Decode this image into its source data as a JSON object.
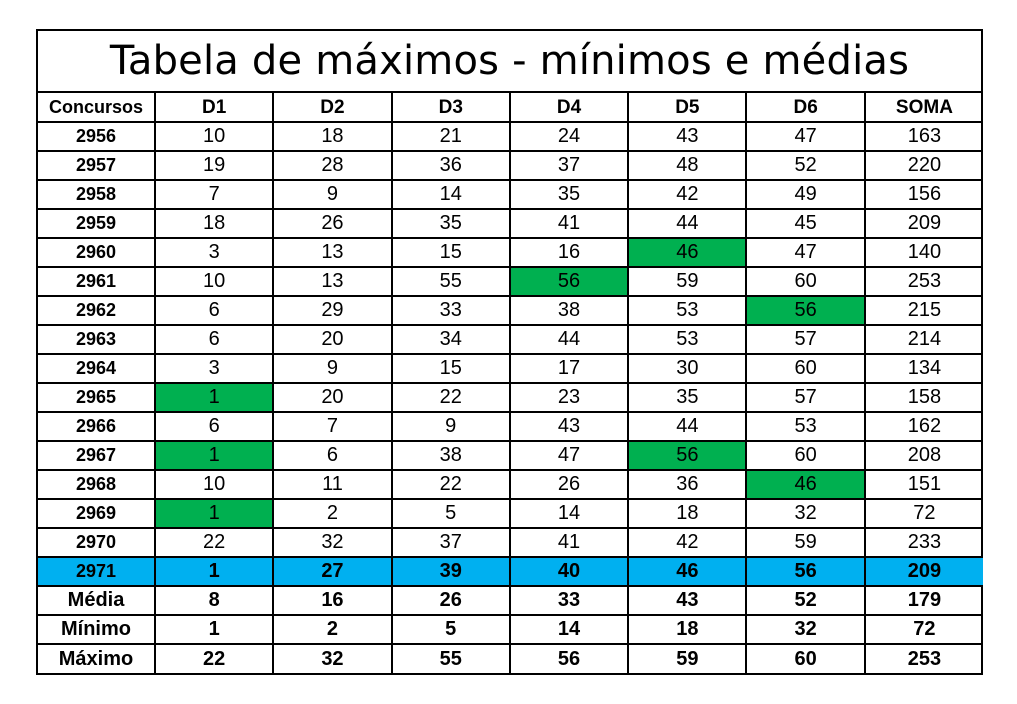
{
  "title": "Tabela de máximos - mínimos e médias",
  "headers": [
    "Concursos",
    "D1",
    "D2",
    "D3",
    "D4",
    "D5",
    "D6",
    "SOMA"
  ],
  "highlight_color": "#00b050",
  "current_row_color": "#00b0f0",
  "rows": [
    {
      "label": "2956",
      "values": [
        "10",
        "18",
        "21",
        "24",
        "43",
        "47",
        "163"
      ],
      "highlight": []
    },
    {
      "label": "2957",
      "values": [
        "19",
        "28",
        "36",
        "37",
        "48",
        "52",
        "220"
      ],
      "highlight": []
    },
    {
      "label": "2958",
      "values": [
        "7",
        "9",
        "14",
        "35",
        "42",
        "49",
        "156"
      ],
      "highlight": []
    },
    {
      "label": "2959",
      "values": [
        "18",
        "26",
        "35",
        "41",
        "44",
        "45",
        "209"
      ],
      "highlight": []
    },
    {
      "label": "2960",
      "values": [
        "3",
        "13",
        "15",
        "16",
        "46",
        "47",
        "140"
      ],
      "highlight": [
        4
      ]
    },
    {
      "label": "2961",
      "values": [
        "10",
        "13",
        "55",
        "56",
        "59",
        "60",
        "253"
      ],
      "highlight": [
        3
      ]
    },
    {
      "label": "2962",
      "values": [
        "6",
        "29",
        "33",
        "38",
        "53",
        "56",
        "215"
      ],
      "highlight": [
        5
      ]
    },
    {
      "label": "2963",
      "values": [
        "6",
        "20",
        "34",
        "44",
        "53",
        "57",
        "214"
      ],
      "highlight": []
    },
    {
      "label": "2964",
      "values": [
        "3",
        "9",
        "15",
        "17",
        "30",
        "60",
        "134"
      ],
      "highlight": []
    },
    {
      "label": "2965",
      "values": [
        "1",
        "20",
        "22",
        "23",
        "35",
        "57",
        "158"
      ],
      "highlight": [
        0
      ]
    },
    {
      "label": "2966",
      "values": [
        "6",
        "7",
        "9",
        "43",
        "44",
        "53",
        "162"
      ],
      "highlight": []
    },
    {
      "label": "2967",
      "values": [
        "1",
        "6",
        "38",
        "47",
        "56",
        "60",
        "208"
      ],
      "highlight": [
        0,
        4
      ]
    },
    {
      "label": "2968",
      "values": [
        "10",
        "11",
        "22",
        "26",
        "36",
        "46",
        "151"
      ],
      "highlight": [
        5
      ]
    },
    {
      "label": "2969",
      "values": [
        "1",
        "2",
        "5",
        "14",
        "18",
        "32",
        "72"
      ],
      "highlight": [
        0
      ]
    },
    {
      "label": "2970",
      "values": [
        "22",
        "32",
        "37",
        "41",
        "42",
        "59",
        "233"
      ],
      "highlight": []
    }
  ],
  "current": {
    "label": "2971",
    "values": [
      "1",
      "27",
      "39",
      "40",
      "46",
      "56",
      "209"
    ]
  },
  "stats": [
    {
      "label": "Média",
      "values": [
        "8",
        "16",
        "26",
        "33",
        "43",
        "52",
        "179"
      ]
    },
    {
      "label": "Mínimo",
      "values": [
        "1",
        "2",
        "5",
        "14",
        "18",
        "32",
        "72"
      ]
    },
    {
      "label": "Máximo",
      "values": [
        "22",
        "32",
        "55",
        "56",
        "59",
        "60",
        "253"
      ]
    }
  ]
}
